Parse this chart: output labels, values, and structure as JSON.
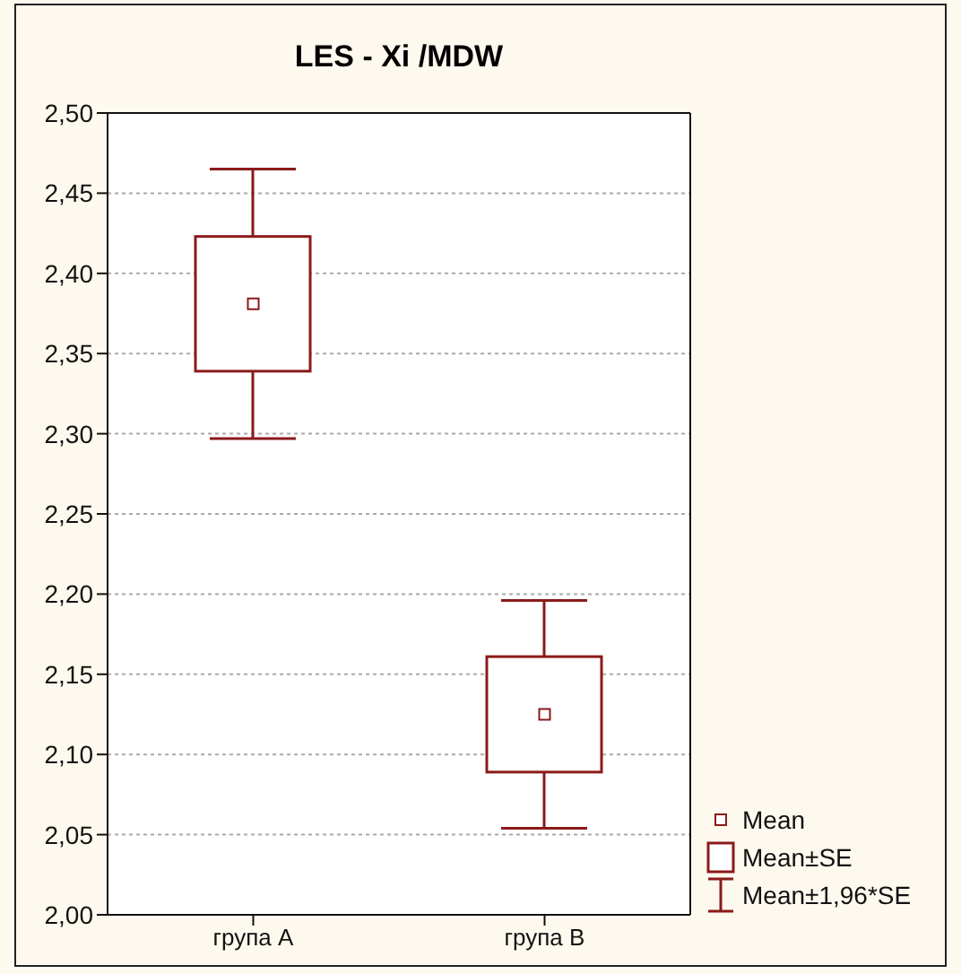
{
  "chart_data": {
    "type": "box",
    "title": "LES - Xi /MDW",
    "categories": [
      "група А",
      "група В"
    ],
    "color": "#8b1a1a",
    "boxes": [
      {
        "low": 2.297,
        "q1": 2.339,
        "q3": 2.423,
        "high": 2.465,
        "mean": 2.381
      },
      {
        "low": 2.054,
        "q1": 2.089,
        "q3": 2.161,
        "high": 2.196,
        "mean": 2.125
      }
    ],
    "ylim": [
      2.0,
      2.5
    ],
    "yticks": [
      {
        "value": 2.0,
        "label": "2,00"
      },
      {
        "value": 2.05,
        "label": "2,05"
      },
      {
        "value": 2.1,
        "label": "2,10"
      },
      {
        "value": 2.15,
        "label": "2,15"
      },
      {
        "value": 2.2,
        "label": "2,20"
      },
      {
        "value": 2.25,
        "label": "2,25"
      },
      {
        "value": 2.3,
        "label": "2,30"
      },
      {
        "value": 2.35,
        "label": "2,35"
      },
      {
        "value": 2.4,
        "label": "2,40"
      },
      {
        "value": 2.45,
        "label": "2,45"
      },
      {
        "value": 2.5,
        "label": "2,50"
      }
    ],
    "grid": "y",
    "annotations": [
      "Mean",
      "Mean±SE",
      "Mean±1,96*SE"
    ]
  }
}
